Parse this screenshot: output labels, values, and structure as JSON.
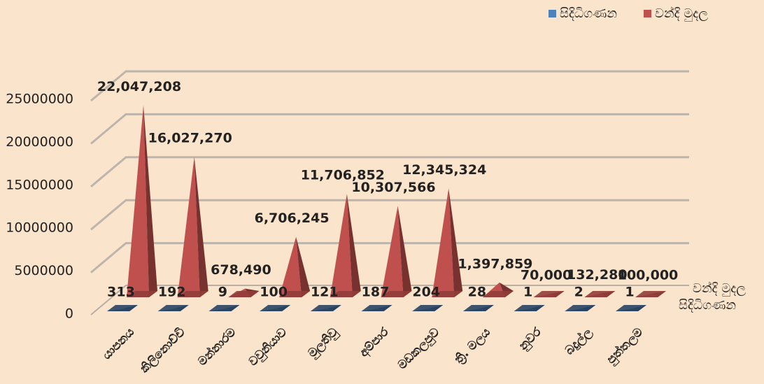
{
  "chart_data": {
    "type": "pyramid3d",
    "categories": [
      "යාපනය",
      "කිලිනොච්චි",
      "මන්නාරම",
      "වවුනියාව",
      "මුලතිවු",
      "අම්පාර",
      "මඩකලපුව",
      "ත්‍රි. මලය",
      "නුවර",
      "බදුල්ල",
      "පුත්තලම"
    ],
    "series": [
      {
        "name": "සිදිධිගණන",
        "color": "#4f81bd",
        "values": [
          313,
          192,
          9,
          100,
          121,
          187,
          204,
          28,
          1,
          2,
          1
        ]
      },
      {
        "name": "වන්දි මුදල",
        "color": "#c0504d",
        "values": [
          22047208,
          16027270,
          678490,
          6706245,
          11706852,
          10307566,
          12345324,
          1397859,
          70000,
          132280,
          100000
        ],
        "value_labels": [
          "22,047,208",
          "16,027,270",
          "678,490",
          "6,706,245",
          "11,706,852",
          "10,307,566",
          "12,345,324",
          "1,397,859",
          "70,000",
          "132,280",
          "100,000"
        ]
      }
    ],
    "ylim": [
      0,
      25000000
    ],
    "yticks": [
      0,
      5000000,
      10000000,
      15000000,
      20000000,
      25000000
    ],
    "grid": true,
    "legend": "top-right"
  }
}
